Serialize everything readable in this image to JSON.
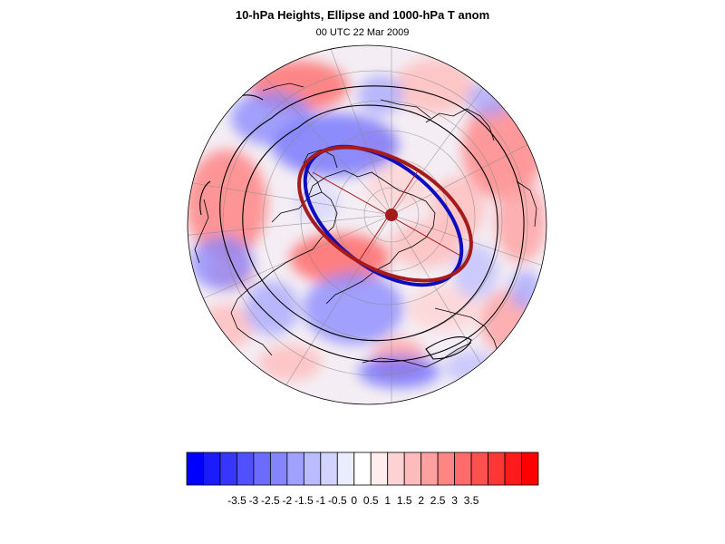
{
  "title": "10-hPa Heights, Ellipse and 1000-hPa T anom",
  "subtitle": "00 UTC 22 Mar 2009",
  "colorbar": {
    "labels": [
      "-3.5",
      "-3",
      "-2.5",
      "-2",
      "-1.5",
      "-1",
      "-0.5",
      "0",
      "0.5",
      "1",
      "1.5",
      "2",
      "2.5",
      "3",
      "3.5"
    ],
    "colors": [
      "#0000ff",
      "#1b1bff",
      "#3636ff",
      "#5050ff",
      "#6b6bff",
      "#8585ff",
      "#a0a0ff",
      "#bbbbff",
      "#d3d3ff",
      "#ececff",
      "#ffffff",
      "#ffecec",
      "#ffd3d3",
      "#ffbbbb",
      "#ffa0a0",
      "#ff8585",
      "#ff6b6b",
      "#ff5050",
      "#ff3636",
      "#ff1b1b",
      "#ff0000"
    ]
  },
  "legend_colors": {
    "ellipse_blue": "#0d0dc0",
    "ellipse_red": "#a51a1a",
    "contour": "#000000",
    "coast": "#000000"
  }
}
